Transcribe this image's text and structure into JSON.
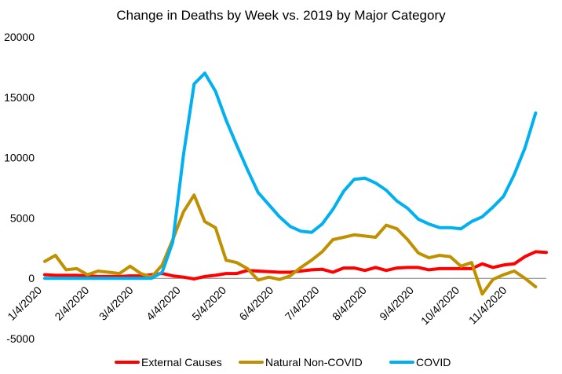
{
  "chart_data": {
    "type": "line",
    "title": "Change in Deaths by Week vs. 2019 by Major Category",
    "xlabel": "",
    "ylabel": "",
    "ylim": [
      -5000,
      20000
    ],
    "y_ticks": [
      -5000,
      0,
      5000,
      10000,
      15000,
      20000
    ],
    "x_tick_labels": [
      "1/4/2020",
      "2/4/2020",
      "3/4/2020",
      "4/4/2020",
      "5/4/2020",
      "6/4/2020",
      "7/4/2020",
      "8/4/2020",
      "9/4/2020",
      "10/4/2020",
      "11/4/2020"
    ],
    "x_tick_week_index": [
      0,
      4.43,
      8.57,
      13,
      17.29,
      21.71,
      26,
      30.43,
      34.86,
      39.14,
      43.57
    ],
    "grid": false,
    "legend_position": "bottom",
    "series": [
      {
        "name": "External Causes",
        "color": "#ff0000",
        "values": [
          300,
          250,
          250,
          250,
          200,
          150,
          150,
          150,
          200,
          200,
          300,
          400,
          200,
          100,
          -50,
          150,
          250,
          400,
          400,
          650,
          600,
          550,
          500,
          500,
          600,
          700,
          750,
          500,
          850,
          850,
          650,
          900,
          650,
          850,
          900,
          900,
          700,
          800,
          800,
          800,
          800,
          1200,
          900,
          1100,
          1200,
          1800,
          2200,
          2150
        ]
      },
      {
        "name": "Natural Non-COVID",
        "color": "#bf9000",
        "values": [
          1400,
          1900,
          700,
          800,
          300,
          600,
          500,
          400,
          1000,
          400,
          100,
          1100,
          3200,
          5500,
          6900,
          4700,
          4200,
          1500,
          1300,
          800,
          -150,
          100,
          -100,
          200,
          900,
          1500,
          2200,
          3200,
          3400,
          3600,
          3500,
          3400,
          4400,
          4100,
          3200,
          2100,
          1700,
          1900,
          1800,
          1000,
          1300,
          -1300,
          -100,
          300,
          600,
          0,
          -700
        ]
      },
      {
        "name": "COVID",
        "color": "#00b0f0",
        "values": [
          0,
          0,
          0,
          0,
          0,
          0,
          0,
          0,
          0,
          0,
          0,
          500,
          3000,
          10200,
          16100,
          17000,
          15500,
          13100,
          11000,
          9000,
          7100,
          6100,
          5100,
          4300,
          3900,
          3800,
          4500,
          5700,
          7200,
          8200,
          8300,
          7900,
          7300,
          6400,
          5800,
          4900,
          4500,
          4200,
          4200,
          4100,
          4700,
          5100,
          5900,
          6800,
          8600,
          10800,
          13700
        ]
      }
    ]
  }
}
